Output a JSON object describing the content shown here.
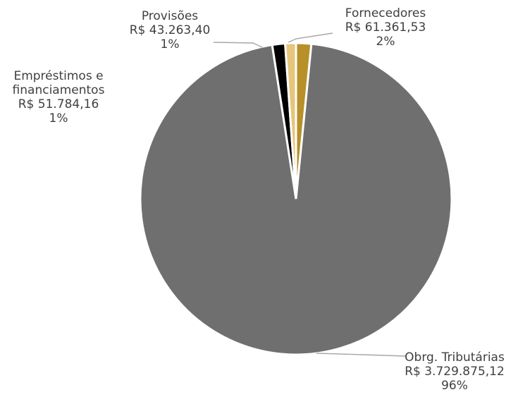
{
  "chart_data": {
    "type": "pie",
    "title": "",
    "slices": [
      {
        "name": "Fornecedores",
        "value": 61361.53,
        "value_label": "R$ 61.361,53",
        "percent_label": "2%",
        "color": "#b8902a"
      },
      {
        "name": "Obrg. Tributárias",
        "value": 3729875.12,
        "value_label": "R$ 3.729.875,12",
        "percent_label": "96%",
        "color": "#6f6f6f"
      },
      {
        "name": "Empréstimos e financiamentos",
        "name_lines": [
          "Empréstimos e",
          "financiamentos"
        ],
        "value": 51784.16,
        "value_label": "R$ 51.784,16",
        "percent_label": "1%",
        "color": "#000000"
      },
      {
        "name": "Provisões",
        "value": 43263.4,
        "value_label": "R$ 43.263,40",
        "percent_label": "1%",
        "color": "#e6c57d"
      }
    ],
    "legend": "none",
    "start_angle": "12 o'clock",
    "direction": "clockwise"
  }
}
